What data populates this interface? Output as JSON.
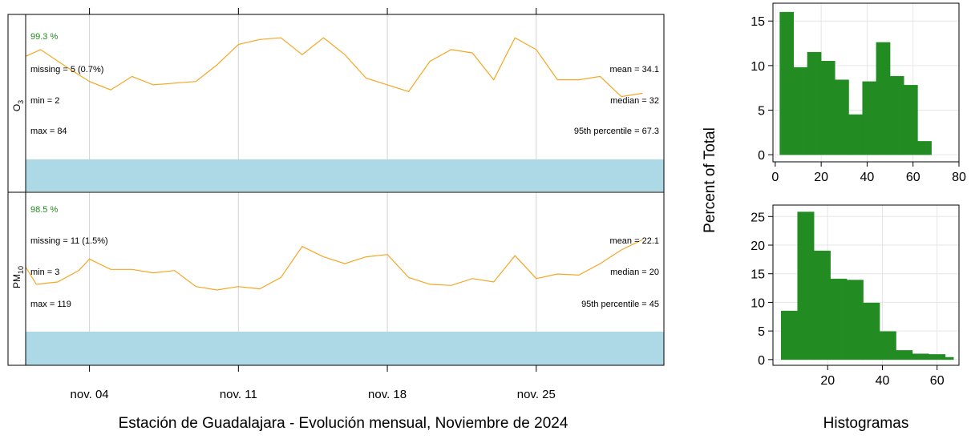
{
  "colors": {
    "line": "#f5a623",
    "band": "#add8e6",
    "bar": "#228b22",
    "pct_text": "#228b22",
    "grid": "#d3d3d3",
    "frame": "#000000"
  },
  "main_title": "Estación de Guadalajara - Evolución mensual, Noviembre de 2024",
  "hist_title": "Histogramas",
  "hist_ylabel": "Percent of Total",
  "chart_data": [
    {
      "type": "line",
      "panel": "O3",
      "ylabel_main": "O",
      "ylabel_sub": "3",
      "x_day": [
        1.0,
        1.7,
        3.0,
        4.0,
        5.0,
        6.0,
        7.0,
        8.0,
        9.0,
        10.0,
        11.0,
        12.0,
        13.0,
        14.0,
        15.0,
        16.0,
        17.0,
        18.0,
        19.0,
        20.0,
        21.0,
        22.0,
        23.0,
        24.0,
        25.0,
        26.0,
        27.0,
        28.0,
        29.0,
        30.0
      ],
      "values": [
        60,
        64,
        53,
        45,
        40,
        48,
        43,
        44,
        45,
        55,
        67,
        70,
        71,
        61,
        71,
        61,
        47,
        43,
        39,
        57,
        64,
        62,
        46,
        71,
        64,
        46,
        46,
        48,
        36,
        38
      ],
      "ylim": [
        0,
        84
      ],
      "band": true,
      "stats_left": {
        "pct": "99.3 %",
        "missing": "missing = 5 (0.7%)",
        "min": "min = 2",
        "max": "max = 84"
      },
      "stats_right": {
        "mean": "mean = 34.1",
        "median": "median = 32",
        "p95": "95th percentile = 67.3"
      }
    },
    {
      "type": "line",
      "panel": "PM10",
      "ylabel_main": "PM",
      "ylabel_sub": "10",
      "x_day": [
        1.0,
        1.5,
        2.5,
        3.5,
        4.0,
        5.0,
        6.0,
        7.0,
        8.0,
        9.0,
        10.0,
        11.0,
        12.0,
        13.0,
        14.0,
        15.0,
        16.0,
        17.0,
        18.0,
        19.0,
        20.0,
        21.0,
        22.0,
        23.0,
        24.0,
        25.0,
        26.0,
        27.0,
        28.0,
        29.0,
        30.0
      ],
      "values": [
        55,
        40,
        42,
        52,
        62,
        53,
        53,
        50,
        52,
        38,
        35,
        38,
        36,
        46,
        73,
        64,
        58,
        64,
        66,
        46,
        40,
        39,
        45,
        42,
        65,
        45,
        49,
        48,
        58,
        70,
        79
      ],
      "ylim": [
        0,
        119
      ],
      "band": true,
      "stats_left": {
        "pct": "98.5 %",
        "missing": "missing = 11 (1.5%)",
        "min": "min = 3",
        "max": "max = 119"
      },
      "stats_right": {
        "mean": "mean = 22.1",
        "median": "median = 20",
        "p95": "95th percentile = 45"
      }
    },
    {
      "type": "bar",
      "panel": "O3 histogram",
      "bin_edges": [
        2,
        9.5,
        17,
        24.5,
        32,
        39.5,
        47,
        54.5,
        62,
        69.5,
        77
      ],
      "values": [
        16.0,
        9.8,
        11.5,
        10.5,
        8.4,
        4.5,
        8.2,
        12.6,
        8.8,
        7.8,
        1.5
      ],
      "bin_edges_all": [
        2,
        8,
        14,
        20,
        26,
        32,
        38,
        44,
        50,
        56,
        62,
        68,
        74,
        77
      ],
      "xlim": [
        -1,
        80
      ],
      "ylim": [
        -0.8,
        17
      ],
      "xticks": [
        0,
        20,
        40,
        60,
        80
      ],
      "yticks": [
        0,
        5,
        10,
        15
      ],
      "xtick_labels": [
        "0",
        "20",
        "40",
        "60",
        "80"
      ],
      "ytick_labels": [
        "0",
        "5",
        "10",
        "15"
      ]
    },
    {
      "type": "bar",
      "panel": "PM10 histogram",
      "bin_edges_all": [
        3,
        9,
        15,
        21,
        27,
        33,
        39,
        45,
        51,
        57,
        63,
        66
      ],
      "values": [
        8.5,
        25.8,
        19.0,
        14.1,
        13.9,
        9.9,
        4.9,
        1.6,
        1.0,
        0.9,
        0.4
      ],
      "xlim": [
        0,
        68
      ],
      "ylim": [
        -1.0,
        27
      ],
      "xticks": [
        20,
        40,
        60
      ],
      "yticks": [
        0,
        5,
        10,
        15,
        20,
        25
      ],
      "xtick_labels": [
        "20",
        "40",
        "60"
      ],
      "ytick_labels": [
        "0",
        "5",
        "10",
        "15",
        "20",
        "25"
      ]
    }
  ],
  "x_axis": {
    "ticks_day": [
      4,
      11,
      18,
      25
    ],
    "tick_labels": [
      "nov. 04",
      "nov. 11",
      "nov. 18",
      "nov. 25"
    ],
    "xlim_day": [
      1,
      31
    ]
  }
}
